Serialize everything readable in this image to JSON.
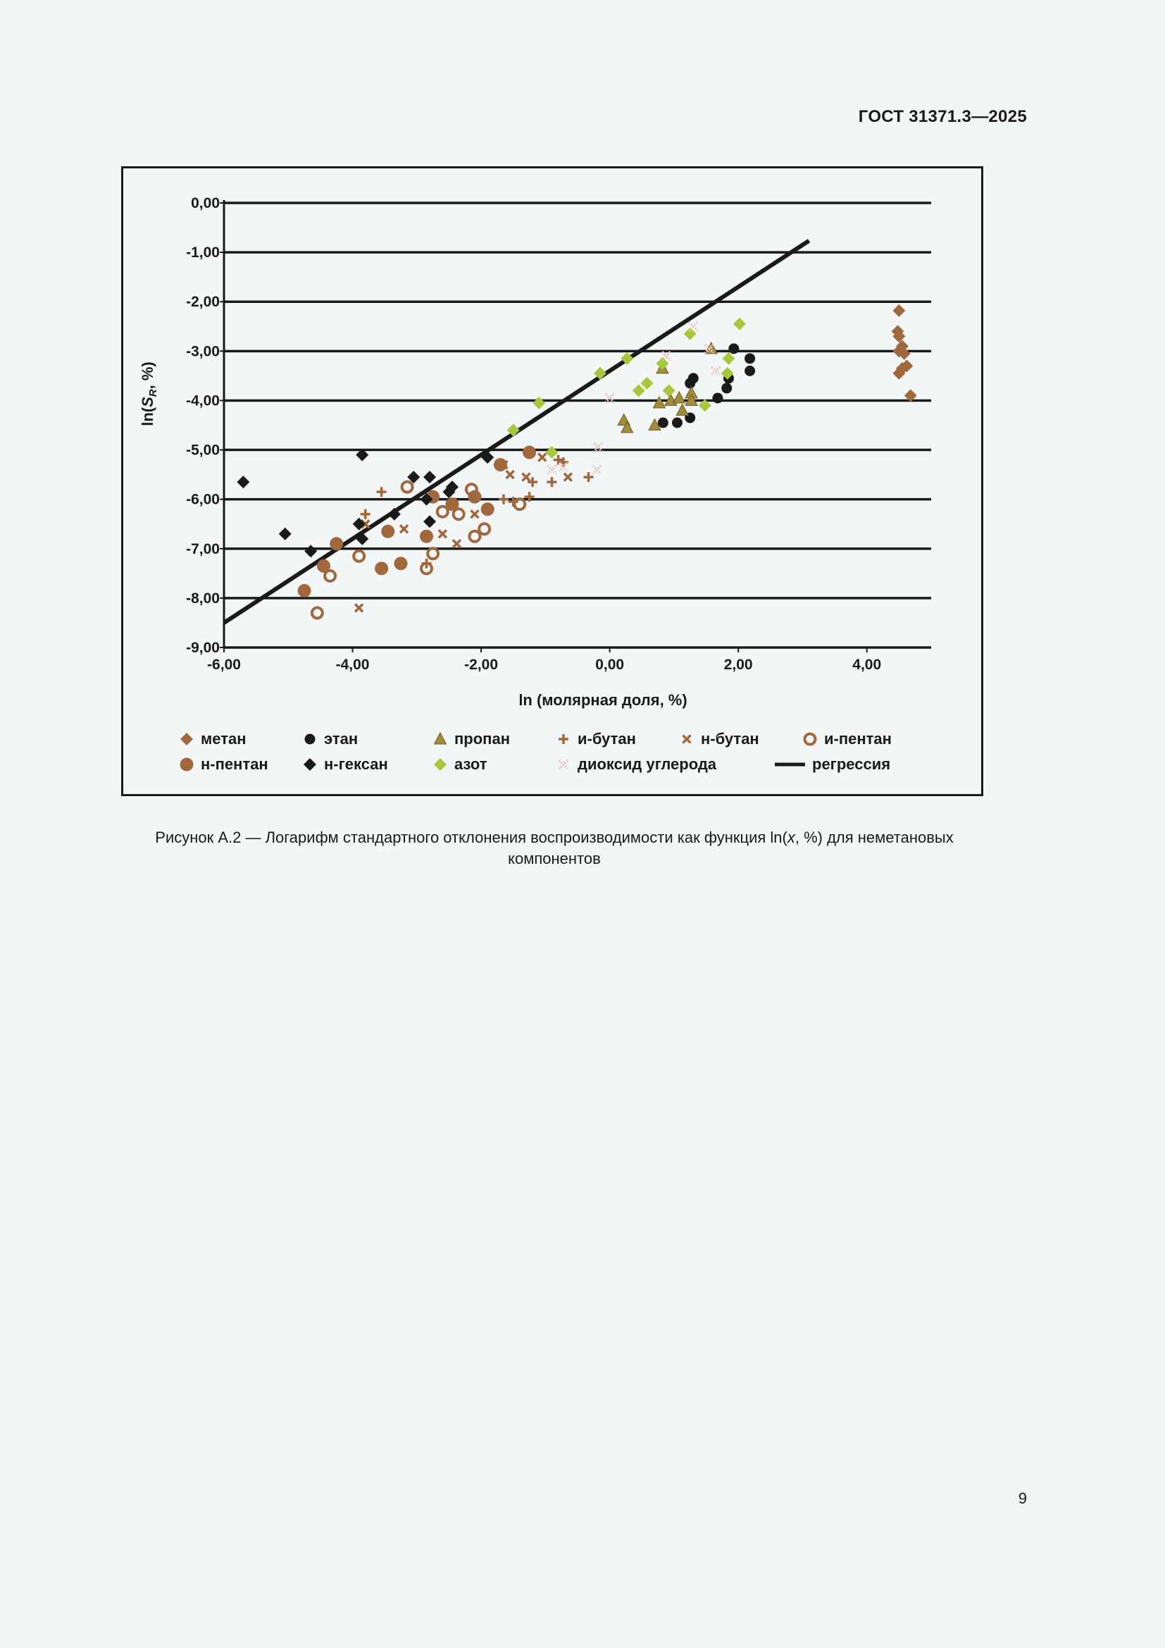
{
  "header": {
    "standard": "ГОСТ 31371.3—2025"
  },
  "caption": {
    "line1_prefix": "Рисунок А.2 — Логарифм стандартного отклонения воспроизводимости как функция ln(",
    "line1_var": "x",
    "line1_suffix": ", %) для неметановых",
    "line2": "компонентов"
  },
  "page_number": "9",
  "chart_data": {
    "type": "scatter",
    "xlabel": "ln (молярная доля, %)",
    "ylabel": {
      "prefix": "ln(",
      "var": "S",
      "sub": "R",
      "suffix": ", %)"
    },
    "xlim": [
      -6,
      5
    ],
    "ylim": [
      -9,
      0
    ],
    "x_ticks": [
      -6,
      -4,
      -2,
      0,
      2,
      4
    ],
    "x_tick_labels": [
      "-6,00",
      "-4,00",
      "-2,00",
      "0,00",
      "2,00",
      "4,00"
    ],
    "y_ticks": [
      0,
      -1,
      -2,
      -3,
      -4,
      -5,
      -6,
      -7,
      -8,
      -9
    ],
    "y_tick_labels": [
      "0,00",
      "-1,00",
      "-2,00",
      "-3,00",
      "-4,00",
      "-5,00",
      "-6,00",
      "-7,00",
      "-8,00",
      "-9,00"
    ],
    "grid": "horizontal",
    "legend_position": "bottom",
    "series": [
      {
        "name": "метан",
        "marker": "diamond",
        "color": "#a0683c",
        "points": [
          [
            4.5,
            -2.18
          ],
          [
            4.48,
            -2.6
          ],
          [
            4.5,
            -2.7
          ],
          [
            4.5,
            -3.0
          ],
          [
            4.55,
            -2.9
          ],
          [
            4.58,
            -3.05
          ],
          [
            4.62,
            -3.3
          ],
          [
            4.5,
            -3.45
          ],
          [
            4.55,
            -3.35
          ],
          [
            4.68,
            -3.9
          ]
        ]
      },
      {
        "name": "этан",
        "marker": "circle",
        "color": "#1a1a1a",
        "points": [
          [
            0.83,
            -4.45
          ],
          [
            1.05,
            -4.45
          ],
          [
            1.25,
            -4.35
          ],
          [
            1.25,
            -3.65
          ],
          [
            1.3,
            -3.55
          ],
          [
            1.68,
            -3.95
          ],
          [
            1.82,
            -3.75
          ],
          [
            1.85,
            -3.55
          ],
          [
            1.93,
            -2.95
          ],
          [
            2.18,
            -3.15
          ],
          [
            2.18,
            -3.4
          ]
        ]
      },
      {
        "name": "пропан",
        "marker": "triangle",
        "color": "#a08c3c",
        "points": [
          [
            0.22,
            -4.4
          ],
          [
            0.27,
            -4.55
          ],
          [
            0.7,
            -4.5
          ],
          [
            0.77,
            -4.05
          ],
          [
            0.82,
            -3.35
          ],
          [
            0.95,
            -4.0
          ],
          [
            1.08,
            -3.95
          ],
          [
            1.13,
            -4.2
          ],
          [
            1.27,
            -3.85
          ],
          [
            1.27,
            -4.0
          ],
          [
            1.58,
            -2.95
          ]
        ]
      },
      {
        "name": "и-бутан",
        "marker": "plus",
        "color": "#a0683c",
        "points": [
          [
            -3.55,
            -5.85
          ],
          [
            -3.8,
            -6.3
          ],
          [
            -2.85,
            -7.3
          ],
          [
            -1.65,
            -6.0
          ],
          [
            -1.5,
            -6.05
          ],
          [
            -1.25,
            -5.95
          ],
          [
            -1.2,
            -5.65
          ],
          [
            -0.9,
            -5.65
          ],
          [
            -0.8,
            -5.2
          ],
          [
            -0.72,
            -5.25
          ],
          [
            -0.33,
            -5.55
          ]
        ]
      },
      {
        "name": "н-бутан",
        "marker": "x",
        "color": "#a0683c",
        "points": [
          [
            -3.9,
            -8.2
          ],
          [
            -3.8,
            -6.5
          ],
          [
            -3.2,
            -6.6
          ],
          [
            -2.6,
            -6.7
          ],
          [
            -2.38,
            -6.9
          ],
          [
            -2.1,
            -6.3
          ],
          [
            -1.65,
            -5.3
          ],
          [
            -1.55,
            -5.5
          ],
          [
            -1.3,
            -5.55
          ],
          [
            -1.05,
            -5.15
          ],
          [
            -0.65,
            -5.55
          ]
        ]
      },
      {
        "name": "и-пентан",
        "marker": "ring",
        "color": "#a0683c",
        "points": [
          [
            -4.55,
            -8.3
          ],
          [
            -4.35,
            -7.55
          ],
          [
            -3.9,
            -7.15
          ],
          [
            -3.15,
            -5.75
          ],
          [
            -2.85,
            -7.4
          ],
          [
            -2.75,
            -7.1
          ],
          [
            -2.6,
            -6.25
          ],
          [
            -2.35,
            -6.3
          ],
          [
            -2.1,
            -6.75
          ],
          [
            -1.95,
            -6.6
          ],
          [
            -2.15,
            -5.8
          ],
          [
            -1.4,
            -6.1
          ]
        ]
      },
      {
        "name": "н-пентан",
        "marker": "bigcircle",
        "color": "#a0683c",
        "points": [
          [
            -4.75,
            -7.85
          ],
          [
            -4.45,
            -7.35
          ],
          [
            -4.25,
            -6.9
          ],
          [
            -3.55,
            -7.4
          ],
          [
            -3.45,
            -6.65
          ],
          [
            -3.25,
            -7.3
          ],
          [
            -2.85,
            -6.75
          ],
          [
            -2.75,
            -5.95
          ],
          [
            -2.45,
            -6.1
          ],
          [
            -2.1,
            -5.95
          ],
          [
            -1.9,
            -6.2
          ],
          [
            -1.7,
            -5.3
          ],
          [
            -1.25,
            -5.05
          ]
        ]
      },
      {
        "name": "н-гексан",
        "marker": "diamond",
        "color": "#1a1a1a",
        "points": [
          [
            -5.7,
            -5.65
          ],
          [
            -5.05,
            -6.7
          ],
          [
            -4.65,
            -7.05
          ],
          [
            -3.9,
            -6.5
          ],
          [
            -3.85,
            -6.8
          ],
          [
            -3.85,
            -5.1
          ],
          [
            -3.35,
            -6.3
          ],
          [
            -3.05,
            -5.55
          ],
          [
            -2.85,
            -6.0
          ],
          [
            -2.8,
            -6.45
          ],
          [
            -2.8,
            -5.55
          ],
          [
            -2.5,
            -5.85
          ],
          [
            -2.45,
            -5.75
          ],
          [
            -1.9,
            -5.15
          ]
        ]
      },
      {
        "name": "азот",
        "marker": "diamond",
        "color": "#a6c83a",
        "points": [
          [
            -1.5,
            -4.6
          ],
          [
            -1.1,
            -4.05
          ],
          [
            -0.9,
            -5.05
          ],
          [
            -0.15,
            -3.45
          ],
          [
            0.27,
            -3.15
          ],
          [
            0.45,
            -3.8
          ],
          [
            0.58,
            -3.65
          ],
          [
            0.82,
            -3.25
          ],
          [
            0.92,
            -3.8
          ],
          [
            1.25,
            -2.65
          ],
          [
            1.48,
            -4.1
          ],
          [
            1.83,
            -3.45
          ],
          [
            1.85,
            -3.15
          ],
          [
            2.02,
            -2.45
          ]
        ]
      },
      {
        "name": "диоксид углерода",
        "marker": "dottedx",
        "color": "#e8c8c0",
        "points": [
          [
            -0.9,
            -5.4
          ],
          [
            -0.72,
            -5.35
          ],
          [
            -0.2,
            -5.4
          ],
          [
            -0.18,
            -4.95
          ],
          [
            0.0,
            -3.95
          ],
          [
            0.88,
            -3.1
          ],
          [
            1.3,
            -2.5
          ],
          [
            1.55,
            -2.95
          ],
          [
            1.65,
            -3.4
          ]
        ]
      }
    ],
    "regression": {
      "name": "регрессия",
      "intercept": -3.4,
      "slope": 0.85,
      "x_range": [
        -6,
        3.1
      ]
    }
  }
}
